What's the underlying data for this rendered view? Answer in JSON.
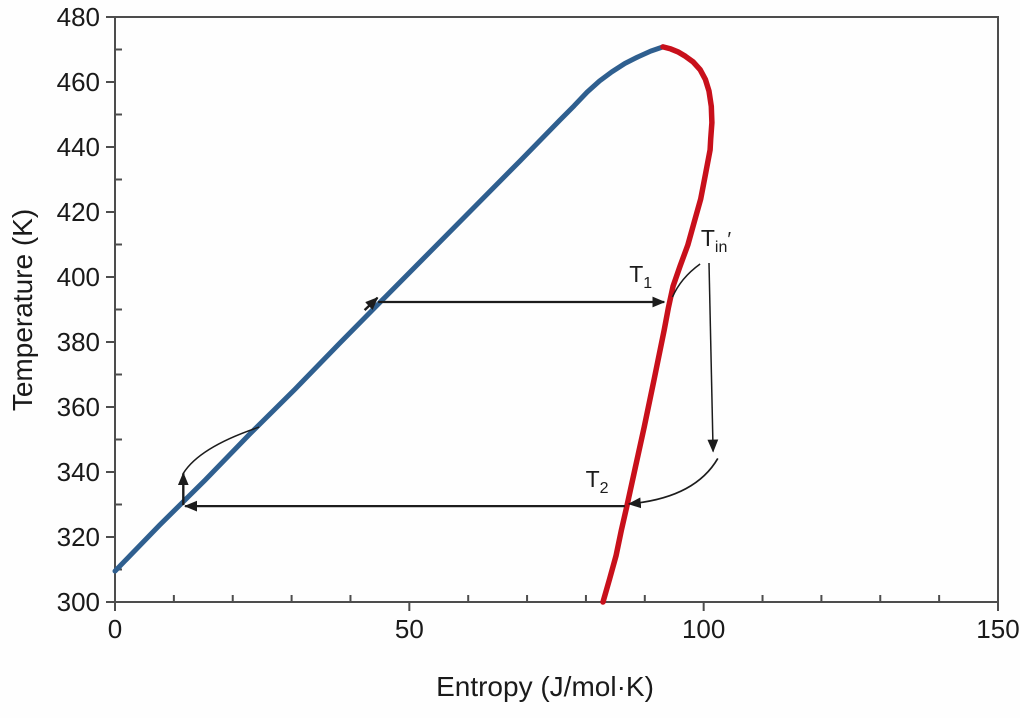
{
  "chart_data": {
    "type": "line",
    "title": "",
    "xlabel": "Entropy (J/mol·K)",
    "ylabel": "Temperature (K)",
    "xlim": [
      0,
      150
    ],
    "ylim": [
      300,
      480
    ],
    "grid": false,
    "legend": "none",
    "x_major_ticks": [
      0,
      50,
      100,
      150
    ],
    "x_minor_ticks": [
      10,
      20,
      30,
      40,
      60,
      70,
      80,
      90,
      110,
      120,
      130,
      140
    ],
    "y_major_ticks": [
      300,
      320,
      340,
      360,
      380,
      400,
      420,
      440,
      460,
      480
    ],
    "y_minor_ticks": [
      310,
      330,
      350,
      370,
      390,
      410,
      430,
      450,
      470
    ],
    "colors": {
      "saturated_liquid": "#2f5f8f",
      "saturated_vapor": "#c8101b",
      "axis": "#4d4d4d",
      "annotation": "#1c1c1c",
      "text": "#1a1a1a"
    },
    "series": [
      {
        "name": "saturated-liquid-line",
        "color": "#2f5f8f",
        "width": 5,
        "points": [
          [
            0,
            309.5
          ],
          [
            7.6,
            323.7
          ],
          [
            15.3,
            337.5
          ],
          [
            22.9,
            351.7
          ],
          [
            30.6,
            365.5
          ],
          [
            38.2,
            379.7
          ],
          [
            45.9,
            393.8
          ],
          [
            53.5,
            407.7
          ],
          [
            61.2,
            421.8
          ],
          [
            68.8,
            435.7
          ],
          [
            75.6,
            448.3
          ],
          [
            78.0,
            452.7
          ],
          [
            80.2,
            456.9
          ],
          [
            82.3,
            460.3
          ],
          [
            84.4,
            463.1
          ],
          [
            86.6,
            465.7
          ],
          [
            88.8,
            467.7
          ],
          [
            91.0,
            469.5
          ],
          [
            93.1,
            470.8
          ]
        ]
      },
      {
        "name": "saturated-vapor-line",
        "color": "#c8101b",
        "width": 5.5,
        "points": [
          [
            93.1,
            470.8
          ],
          [
            94.4,
            470.2
          ],
          [
            95.6,
            469.3
          ],
          [
            96.9,
            467.9
          ],
          [
            98.2,
            466.2
          ],
          [
            99.4,
            463.8
          ],
          [
            100.3,
            460.8
          ],
          [
            100.9,
            457.2
          ],
          [
            101.3,
            452.5
          ],
          [
            101.4,
            447.5
          ],
          [
            101.2,
            442.5
          ],
          [
            101.1,
            439.1
          ],
          [
            100.3,
            431.5
          ],
          [
            99.5,
            424.0
          ],
          [
            98.4,
            416.9
          ],
          [
            97.3,
            409.8
          ],
          [
            96.0,
            403.4
          ],
          [
            94.8,
            397.2
          ],
          [
            94.0,
            390.4
          ],
          [
            93.3,
            383.7
          ],
          [
            91.6,
            368.6
          ],
          [
            89.9,
            353.8
          ],
          [
            88.4,
            341.5
          ],
          [
            87.0,
            329.8
          ],
          [
            86.0,
            322.0
          ],
          [
            85.1,
            314.2
          ],
          [
            84.0,
            307.0
          ],
          [
            82.9,
            300.0
          ]
        ]
      }
    ],
    "annotations": {
      "labels": [
        {
          "id": "t1-label",
          "main": "T",
          "sub": "1",
          "post": "",
          "at": [
            89.3,
            398.5
          ]
        },
        {
          "id": "t2-label",
          "main": "T",
          "sub": "2",
          "post": "",
          "at": [
            81.9,
            335.4
          ]
        },
        {
          "id": "tin-label",
          "main": "T",
          "sub": "in",
          "post": "′",
          "at": [
            102.1,
            409.5
          ]
        }
      ],
      "arrows": [
        {
          "id": "t1-isotherm-arrow",
          "from": [
            44.7,
            392.3
          ],
          "to": [
            93.3,
            392.3
          ],
          "head": "end",
          "w": 2.2
        },
        {
          "id": "t2-isotherm-arrow",
          "from": [
            86.6,
            329.5
          ],
          "to": [
            11.9,
            329.5
          ],
          "head": "end",
          "w": 2.2
        },
        {
          "id": "pump-arrow",
          "from": [
            11.6,
            329.8
          ],
          "to": [
            11.6,
            339.6
          ],
          "head": "end",
          "w": 2.4
        },
        {
          "id": "liquid-line-flow-arrow",
          "from": [
            42.4,
            389.8
          ],
          "to": [
            44.6,
            393.6
          ],
          "head": "end",
          "w": 2.4
        },
        {
          "id": "tin-pointer-down",
          "from": [
            100.9,
            404.3
          ],
          "to": [
            101.6,
            346.3
          ],
          "head": "end",
          "w": 1.5
        },
        {
          "id": "tin-pointer-to-t1",
          "from": [
            99.4,
            404.0
          ],
          "via": [
            96.1,
            399.7
          ],
          "to": [
            94.7,
            393.8
          ],
          "head": "none",
          "w": 1.5
        },
        {
          "id": "tin-curve-to-t2",
          "from": [
            102.4,
            344.2
          ],
          "via": [
            98.5,
            332.0
          ],
          "to": [
            87.3,
            330.2
          ],
          "head": "end",
          "w": 1.7
        },
        {
          "id": "pump-exit-curve",
          "from": [
            11.6,
            339.6
          ],
          "via": [
            14.4,
            347.7
          ],
          "to": [
            24.5,
            353.8
          ],
          "head": "none",
          "w": 1.5
        }
      ]
    }
  }
}
